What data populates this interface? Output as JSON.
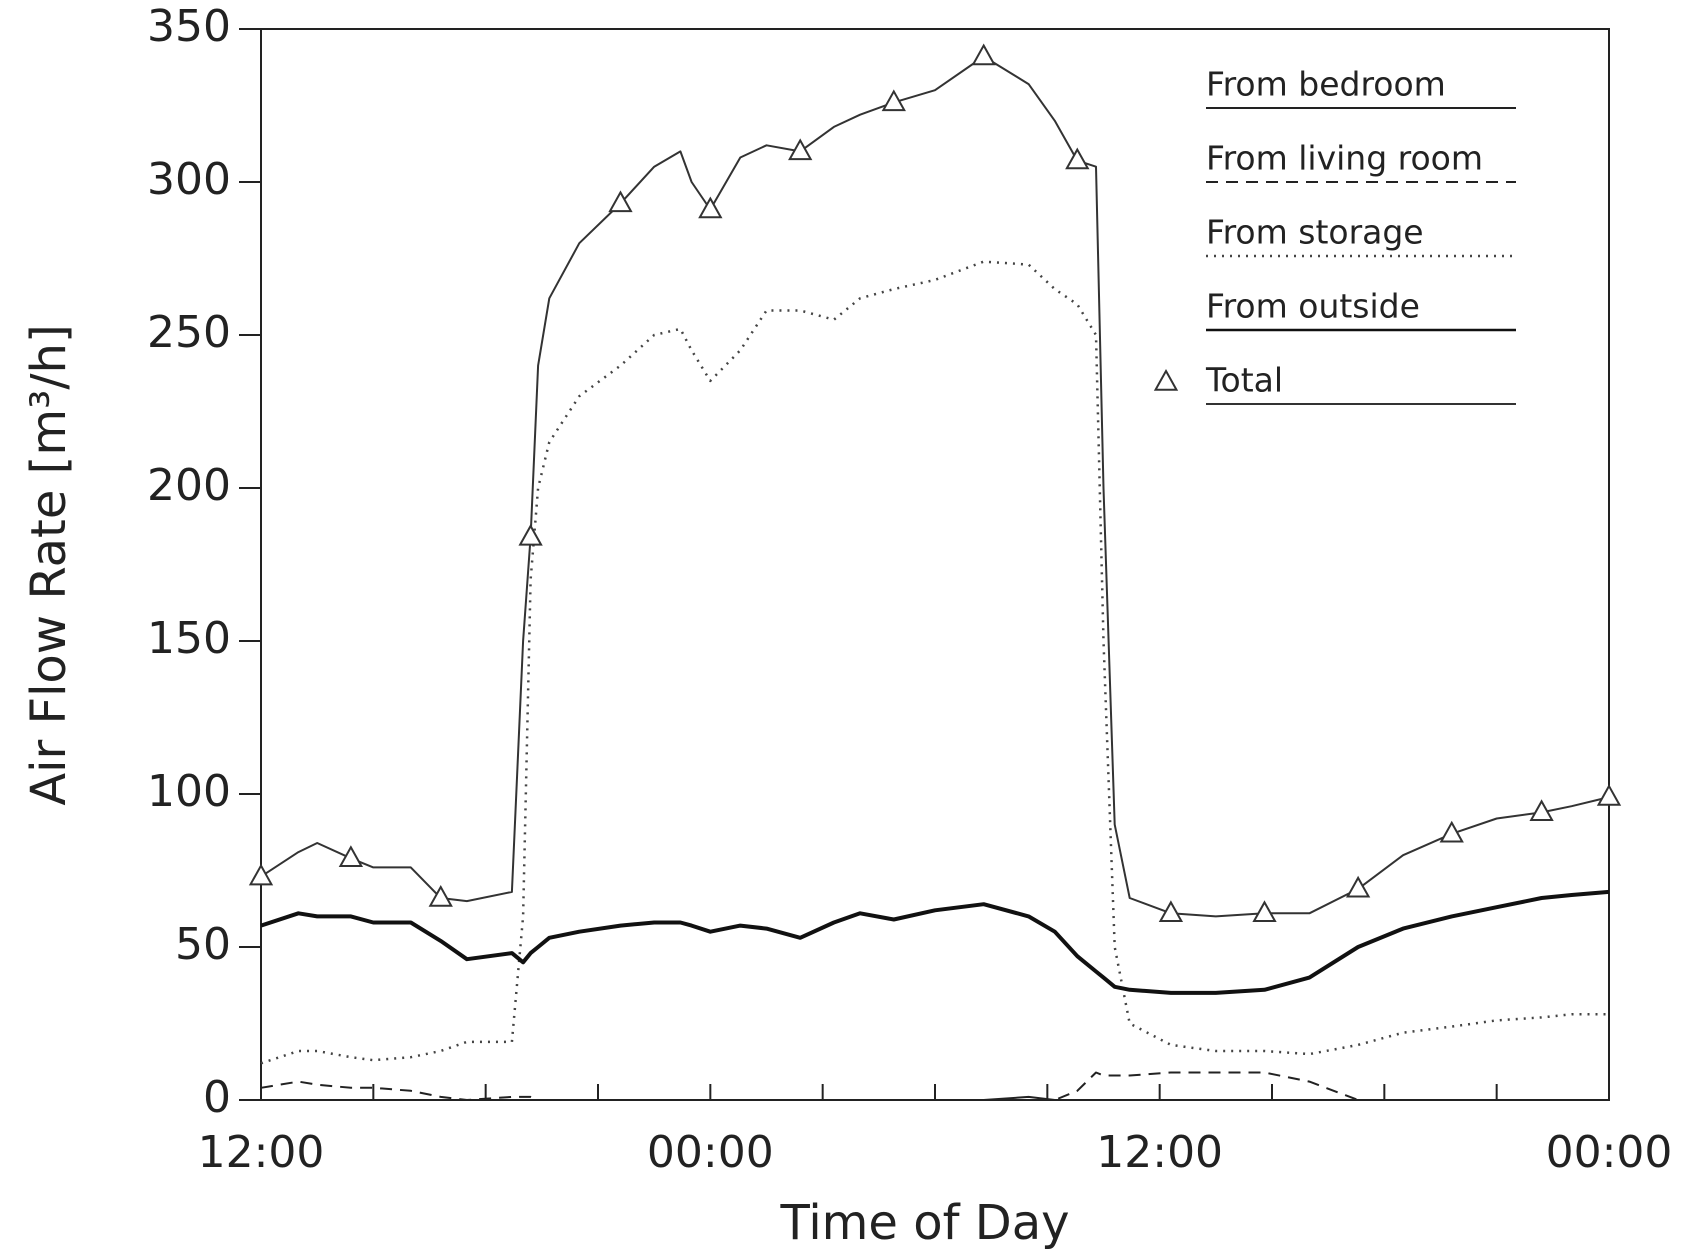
{
  "chart_data": {
    "type": "line",
    "xlabel": "Time of Day",
    "ylabel": "Air Flow Rate [m³/h]",
    "x": [
      0,
      1,
      1.5,
      2.4,
      3,
      4,
      4.8,
      5.5,
      6.7,
      7.0,
      7.2,
      7.4,
      7.7,
      8.5,
      9.6,
      10.5,
      11.2,
      11.5,
      12,
      12.8,
      13.5,
      14.4,
      15.3,
      16,
      16.9,
      18,
      19.3,
      20.5,
      21.2,
      21.8,
      22.3,
      22.5,
      22.8,
      23.2,
      24.3,
      25.5,
      26.8,
      28,
      29.3,
      30.5,
      31.8,
      33,
      34.2,
      35,
      36
    ],
    "xlim": [
      0,
      36
    ],
    "xticks": [
      {
        "value": 0,
        "label": "12:00"
      },
      {
        "value": 12,
        "label": "00:00"
      },
      {
        "value": 24,
        "label": "12:00"
      },
      {
        "value": 36,
        "label": "00:00"
      }
    ],
    "xminorticks": [
      3,
      6,
      9,
      15,
      18,
      21,
      27,
      30,
      33
    ],
    "ylim": [
      0,
      350
    ],
    "yticks": [
      0,
      50,
      100,
      150,
      200,
      250,
      300,
      350
    ],
    "legend": "upper right",
    "series": [
      {
        "name": "From bedroom",
        "color": "#222222",
        "dash": "solid",
        "width": 2,
        "values": [
          0,
          0,
          0,
          0,
          0,
          0,
          0,
          0,
          0,
          0,
          0,
          0,
          0,
          0,
          0,
          0,
          0,
          0,
          0,
          0,
          0,
          0,
          0,
          0,
          0,
          0,
          0,
          1,
          0,
          0,
          0,
          0,
          0,
          0,
          0,
          0,
          0,
          0,
          0,
          0,
          0,
          0,
          0,
          0,
          0
        ]
      },
      {
        "name": "From living room",
        "color": "#222222",
        "dash": "dashed",
        "width": 2,
        "values": [
          4,
          6,
          5,
          4,
          4,
          3,
          1,
          0,
          1,
          1,
          1,
          0,
          0,
          0,
          0,
          0,
          0,
          0,
          0,
          0,
          0,
          0,
          0,
          0,
          0,
          0,
          0,
          0,
          0,
          3,
          9,
          8,
          8,
          8,
          9,
          9,
          9,
          6,
          0,
          0,
          0,
          0,
          0,
          0,
          0
        ]
      },
      {
        "name": "From storage",
        "color": "#444444",
        "dash": "dotted",
        "width": 2.5,
        "values": [
          12,
          16,
          16,
          14,
          13,
          14,
          16,
          19,
          19,
          60,
          170,
          200,
          215,
          230,
          240,
          250,
          252,
          245,
          235,
          245,
          258,
          258,
          255,
          262,
          265,
          268,
          274,
          273,
          265,
          260,
          250,
          150,
          50,
          25,
          18,
          16,
          16,
          15,
          18,
          22,
          24,
          26,
          27,
          28,
          28
        ]
      },
      {
        "name": "From outside",
        "color": "#111111",
        "dash": "solid",
        "width": 4,
        "values": [
          57,
          61,
          60,
          60,
          58,
          58,
          52,
          46,
          48,
          45,
          48,
          50,
          53,
          55,
          57,
          58,
          58,
          57,
          55,
          57,
          56,
          53,
          58,
          61,
          59,
          62,
          64,
          60,
          55,
          47,
          42,
          40,
          37,
          36,
          35,
          35,
          36,
          40,
          50,
          56,
          60,
          63,
          66,
          67,
          68
        ]
      },
      {
        "name": "Total",
        "color": "#333333",
        "dash": "solid",
        "width": 2,
        "marker": "triangle",
        "marker_x": [
          0,
          2.4,
          4.8,
          7.2,
          9.6,
          12,
          14.4,
          16.9,
          19.3,
          21.8,
          24.3,
          26.8,
          29.3,
          31.8,
          34.2,
          36
        ],
        "values": [
          73,
          81,
          84,
          79,
          76,
          76,
          66,
          65,
          68,
          150,
          184,
          240,
          262,
          280,
          293,
          305,
          310,
          300,
          291,
          308,
          312,
          310,
          318,
          322,
          326,
          330,
          341,
          332,
          320,
          307,
          305,
          200,
          90,
          66,
          61,
          60,
          61,
          61,
          69,
          80,
          87,
          92,
          94,
          96,
          99
        ]
      }
    ]
  }
}
